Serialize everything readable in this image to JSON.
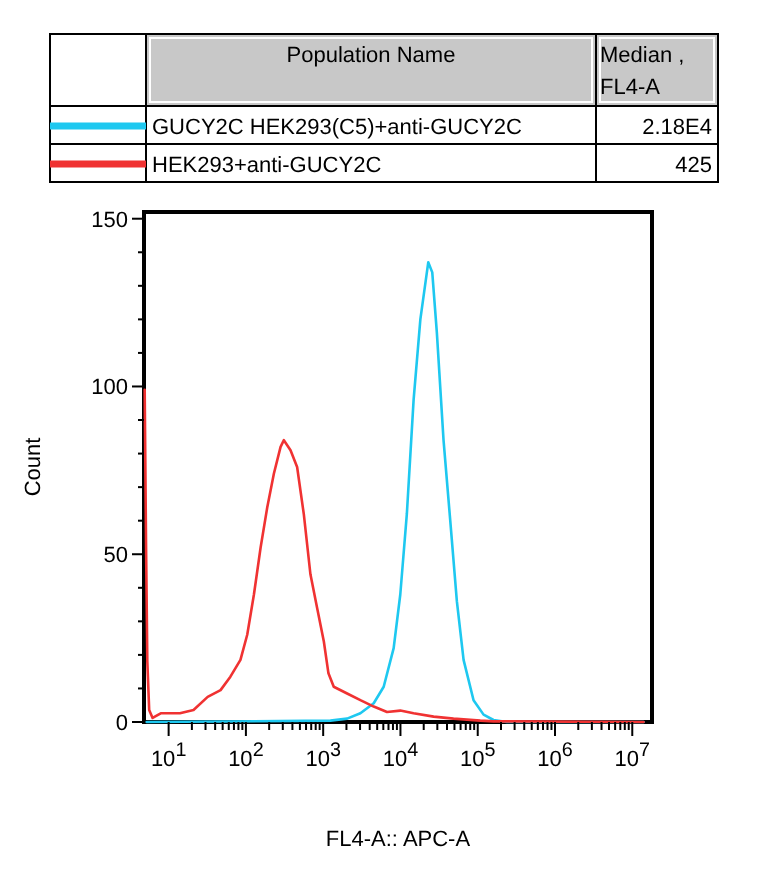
{
  "chart_data": {
    "type": "line",
    "xlabel": "FL4-A:: APC-A",
    "ylabel": "Count",
    "legend_title": "Population Name",
    "legend": "top",
    "log": "x",
    "grid": false,
    "marker": "none",
    "line_style": "solid",
    "annotations": [
      "Median , FL4-A",
      "2.18E4",
      "425"
    ],
    "xlim": [
      4.8,
      18000000
    ],
    "ylim": [
      0,
      152
    ],
    "xticks": [
      {
        "value": 10,
        "label": "10$^{1}$"
      },
      {
        "value": 20,
        "label": null
      },
      {
        "value": 30,
        "label": null
      },
      {
        "value": 40,
        "label": null
      },
      {
        "value": 50,
        "label": null
      },
      {
        "value": 60,
        "label": null
      },
      {
        "value": 70,
        "label": null
      },
      {
        "value": 80,
        "label": null
      },
      {
        "value": 90,
        "label": null
      },
      {
        "value": 100,
        "label": "10$^{2}$"
      },
      {
        "value": 200,
        "label": null
      },
      {
        "value": 300,
        "label": null
      },
      {
        "value": 400,
        "label": null
      },
      {
        "value": 500,
        "label": null
      },
      {
        "value": 600,
        "label": null
      },
      {
        "value": 700,
        "label": null
      },
      {
        "value": 800,
        "label": null
      },
      {
        "value": 900,
        "label": null
      },
      {
        "value": 1000,
        "label": "10$^{3}$"
      },
      {
        "value": 2000,
        "label": null
      },
      {
        "value": 3000,
        "label": null
      },
      {
        "value": 4000,
        "label": null
      },
      {
        "value": 5000,
        "label": null
      },
      {
        "value": 6000,
        "label": null
      },
      {
        "value": 7000,
        "label": null
      },
      {
        "value": 8000,
        "label": null
      },
      {
        "value": 9000,
        "label": null
      },
      {
        "value": 10000,
        "label": "10$^{4}$"
      },
      {
        "value": 20000,
        "label": null
      },
      {
        "value": 30000,
        "label": null
      },
      {
        "value": 40000,
        "label": null
      },
      {
        "value": 50000,
        "label": null
      },
      {
        "value": 60000,
        "label": null
      },
      {
        "value": 70000,
        "label": null
      },
      {
        "value": 80000,
        "label": null
      },
      {
        "value": 90000,
        "label": null
      },
      {
        "value": 100000,
        "label": "10$^{5}$"
      },
      {
        "value": 200000,
        "label": null
      },
      {
        "value": 300000,
        "label": null
      },
      {
        "value": 400000,
        "label": null
      },
      {
        "value": 500000,
        "label": null
      },
      {
        "value": 600000,
        "label": null
      },
      {
        "value": 700000,
        "label": null
      },
      {
        "value": 800000,
        "label": null
      },
      {
        "value": 900000,
        "label": null
      },
      {
        "value": 1000000,
        "label": "10$^{6}$"
      },
      {
        "value": 2000000,
        "label": null
      },
      {
        "value": 3000000,
        "label": null
      },
      {
        "value": 4000000,
        "label": null
      },
      {
        "value": 5000000,
        "label": null
      },
      {
        "value": 6000000,
        "label": null
      },
      {
        "value": 7000000,
        "label": null
      },
      {
        "value": 8000000,
        "label": null
      },
      {
        "value": 9000000,
        "label": null
      },
      {
        "value": 10000000,
        "label": "10$^{7}$"
      }
    ],
    "yticks": [
      0,
      {
        "value": 10,
        "label": null
      },
      {
        "value": 20,
        "label": null
      },
      {
        "value": 30,
        "label": null
      },
      {
        "value": 40,
        "label": null
      },
      50,
      {
        "value": 60,
        "label": null
      },
      {
        "value": 70,
        "label": null
      },
      {
        "value": 80,
        "label": null
      },
      {
        "value": 90,
        "label": null
      },
      100,
      {
        "value": 110,
        "label": null
      },
      {
        "value": 120,
        "label": null
      },
      {
        "value": 130,
        "label": null
      },
      {
        "value": 140,
        "label": null
      },
      150
    ],
    "series": [
      {
        "name": "GUCY2C HEK293(C5)+anti-GUCY2C",
        "color": "#1ec8f0",
        "x": [
          5.2,
          1240,
          2040,
          3030,
          4510,
          6070,
          8170,
          9950,
          12100,
          14800,
          18100,
          22900,
          25800,
          29600,
          36100,
          44100,
          53700,
          65600,
          88300,
          119000,
          160000,
          238000,
          14000000
        ],
        "values": [
          0,
          0.4,
          1,
          2.6,
          5.6,
          10.5,
          22,
          38,
          62,
          96,
          120,
          137,
          134,
          116,
          84,
          60,
          36,
          18.5,
          6.5,
          2.2,
          0.6,
          0,
          0
        ]
      },
      {
        "name": "HEK293+anti-GUCY2C",
        "color": "#f03232",
        "x": [
          4.9,
          5.1,
          5.3,
          5.6,
          6.2,
          7.9,
          14,
          21,
          32,
          47,
          63,
          85,
          104,
          127,
          155,
          189,
          230,
          281,
          310,
          378,
          460,
          561,
          684,
          835,
          1020,
          1170,
          1370,
          2040,
          3030,
          4510,
          6700,
          9950,
          14800,
          26900,
          48600,
          108000,
          160000,
          14000000
        ],
        "values": [
          99,
          53,
          18,
          3.6,
          1.2,
          2.6,
          2.6,
          3.6,
          7.5,
          9.5,
          13.5,
          18.5,
          26,
          38,
          52,
          64,
          74,
          82,
          84,
          81,
          76,
          62,
          44,
          34,
          24,
          14.5,
          10.5,
          8.5,
          6.5,
          4.6,
          3,
          3.4,
          2.6,
          1.6,
          1,
          0.4,
          0.2,
          0
        ]
      }
    ]
  }
}
